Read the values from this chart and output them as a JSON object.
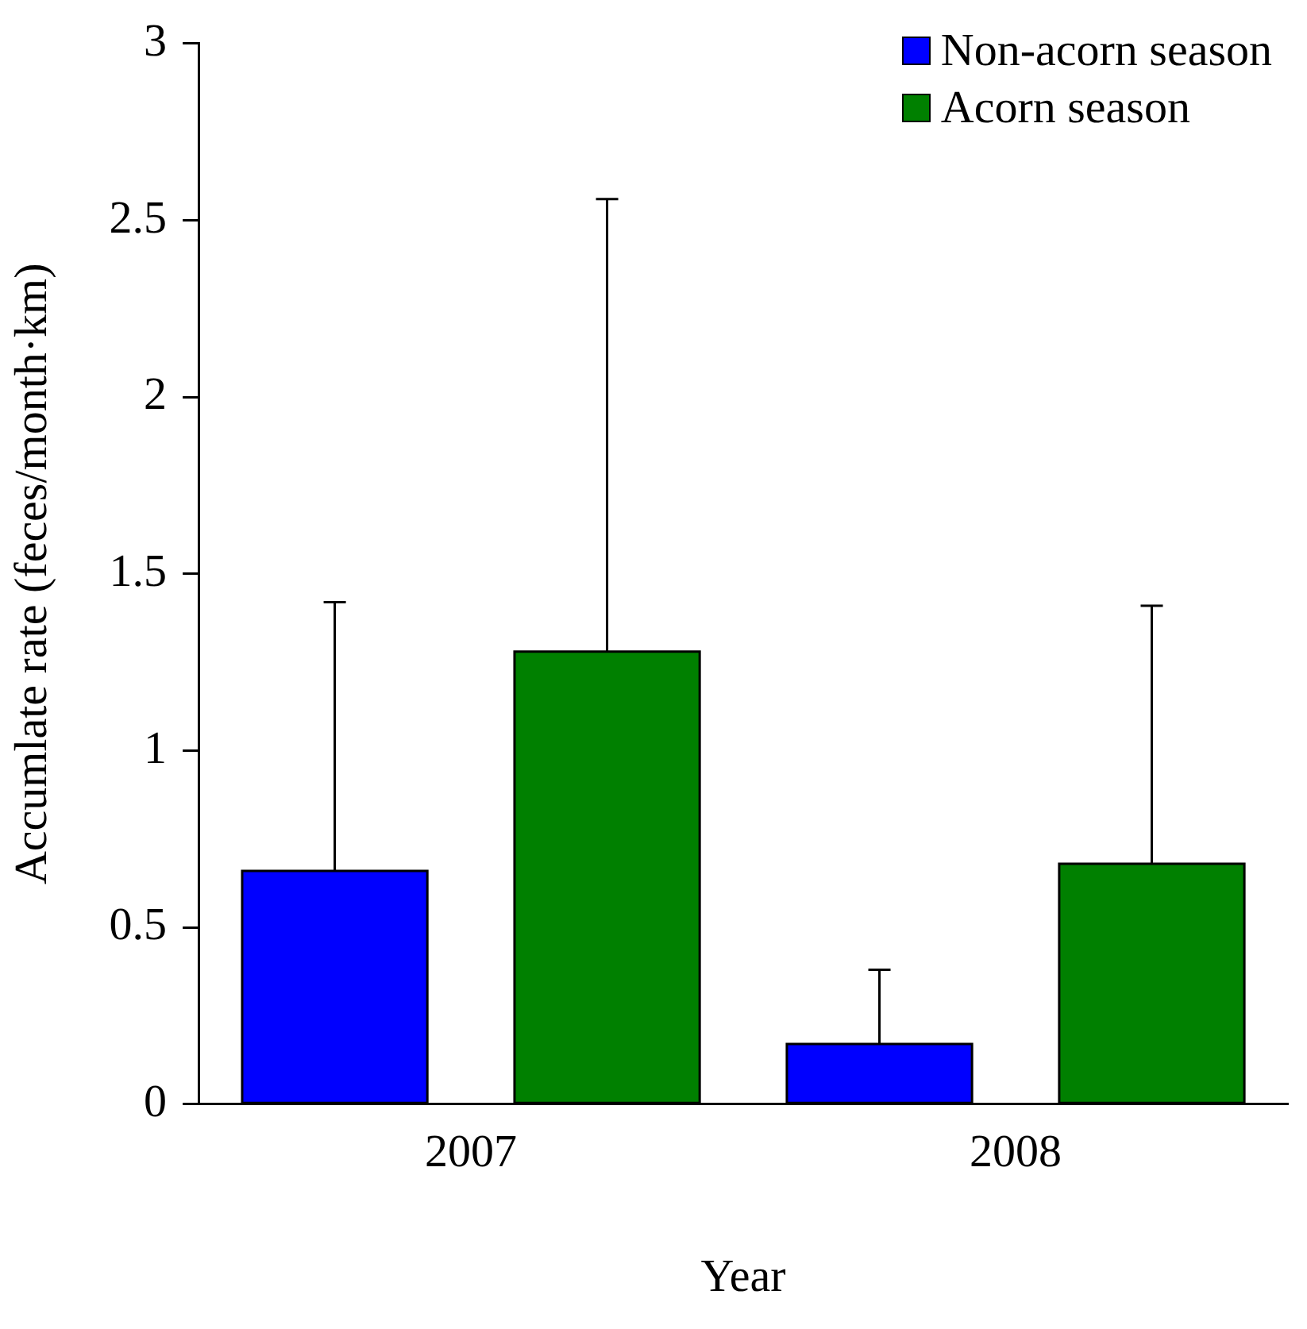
{
  "chart_data": {
    "type": "bar",
    "xlabel": "Year",
    "ylabel": "Accumlate rate (feces/month·km)",
    "categories": [
      "2007",
      "2008"
    ],
    "series": [
      {
        "name": "Non-acorn season",
        "color": "#0000ff",
        "values": [
          0.66,
          0.17
        ],
        "errors": [
          [
            0.66,
            1.42
          ],
          [
            0.17,
            0.38
          ]
        ]
      },
      {
        "name": "Acorn season",
        "color": "#008000",
        "values": [
          1.28,
          0.68
        ],
        "errors": [
          [
            1.28,
            2.56
          ],
          [
            0.68,
            1.41
          ]
        ]
      }
    ],
    "ylim": [
      0,
      3
    ],
    "yticks": [
      0,
      0.5,
      1,
      1.5,
      2,
      2.5,
      3
    ],
    "grid": false,
    "legend": "top right"
  }
}
